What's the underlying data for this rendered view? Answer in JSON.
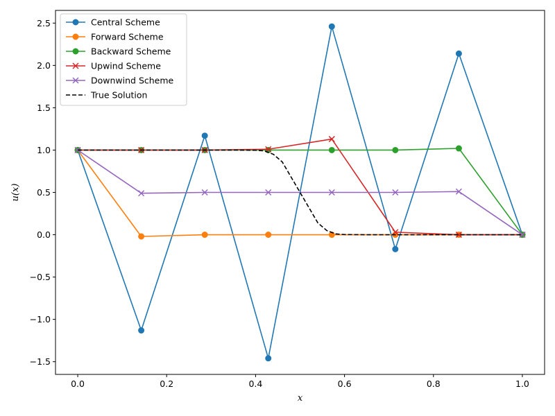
{
  "chart_data": {
    "type": "line",
    "title": "",
    "xlabel": "x",
    "ylabel": "u(x)",
    "xlim": [
      -0.05,
      1.05
    ],
    "ylim": [
      -1.65,
      2.65
    ],
    "xticks": [
      0.0,
      0.2,
      0.4,
      0.6,
      0.8,
      1.0
    ],
    "xtick_labels": [
      "0.0",
      "0.2",
      "0.4",
      "0.6",
      "0.8",
      "1.0"
    ],
    "yticks": [
      -1.5,
      -1.0,
      -0.5,
      0.0,
      0.5,
      1.0,
      1.5,
      2.0,
      2.5
    ],
    "ytick_labels": [
      "−1.5",
      "−1.0",
      "−0.5",
      "0.0",
      "0.5",
      "1.0",
      "1.5",
      "2.0",
      "2.5"
    ],
    "grid": false,
    "legend_position": "top-left",
    "x": [
      0.0,
      0.142857,
      0.285714,
      0.428571,
      0.571429,
      0.714286,
      0.857143,
      1.0
    ],
    "series": [
      {
        "name": "Central Scheme",
        "color": "#1f77b4",
        "marker": "circle",
        "line": "solid",
        "values": [
          1.0,
          -1.13,
          1.17,
          -1.46,
          2.46,
          -0.17,
          2.14,
          0.0
        ]
      },
      {
        "name": "Forward Scheme",
        "color": "#ff7f0e",
        "marker": "circle",
        "line": "solid",
        "values": [
          1.0,
          -0.02,
          0.0,
          0.0,
          0.0,
          0.0,
          0.0,
          0.0
        ]
      },
      {
        "name": "Backward Scheme",
        "color": "#2ca02c",
        "marker": "circle",
        "line": "solid",
        "values": [
          1.0,
          1.0,
          1.0,
          1.0,
          1.0,
          1.0,
          1.02,
          0.0
        ]
      },
      {
        "name": "Upwind Scheme",
        "color": "#d62728",
        "marker": "x",
        "line": "solid",
        "values": [
          1.0,
          1.0,
          1.0,
          1.01,
          1.13,
          0.03,
          0.0,
          0.0
        ]
      },
      {
        "name": "Downwind Scheme",
        "color": "#9467bd",
        "marker": "x",
        "line": "solid",
        "values": [
          1.0,
          0.49,
          0.5,
          0.5,
          0.5,
          0.5,
          0.51,
          0.0
        ]
      }
    ],
    "true_solution": {
      "name": "True Solution",
      "color": "#000000",
      "line": "dashed",
      "x": [
        0.0,
        0.35,
        0.4,
        0.42,
        0.44,
        0.46,
        0.48,
        0.5,
        0.52,
        0.54,
        0.56,
        0.58,
        0.6,
        0.65,
        1.0
      ],
      "values": [
        1.0,
        1.0,
        0.998,
        0.99,
        0.95,
        0.86,
        0.68,
        0.5,
        0.32,
        0.14,
        0.05,
        0.01,
        0.002,
        0.0,
        0.0
      ]
    }
  }
}
